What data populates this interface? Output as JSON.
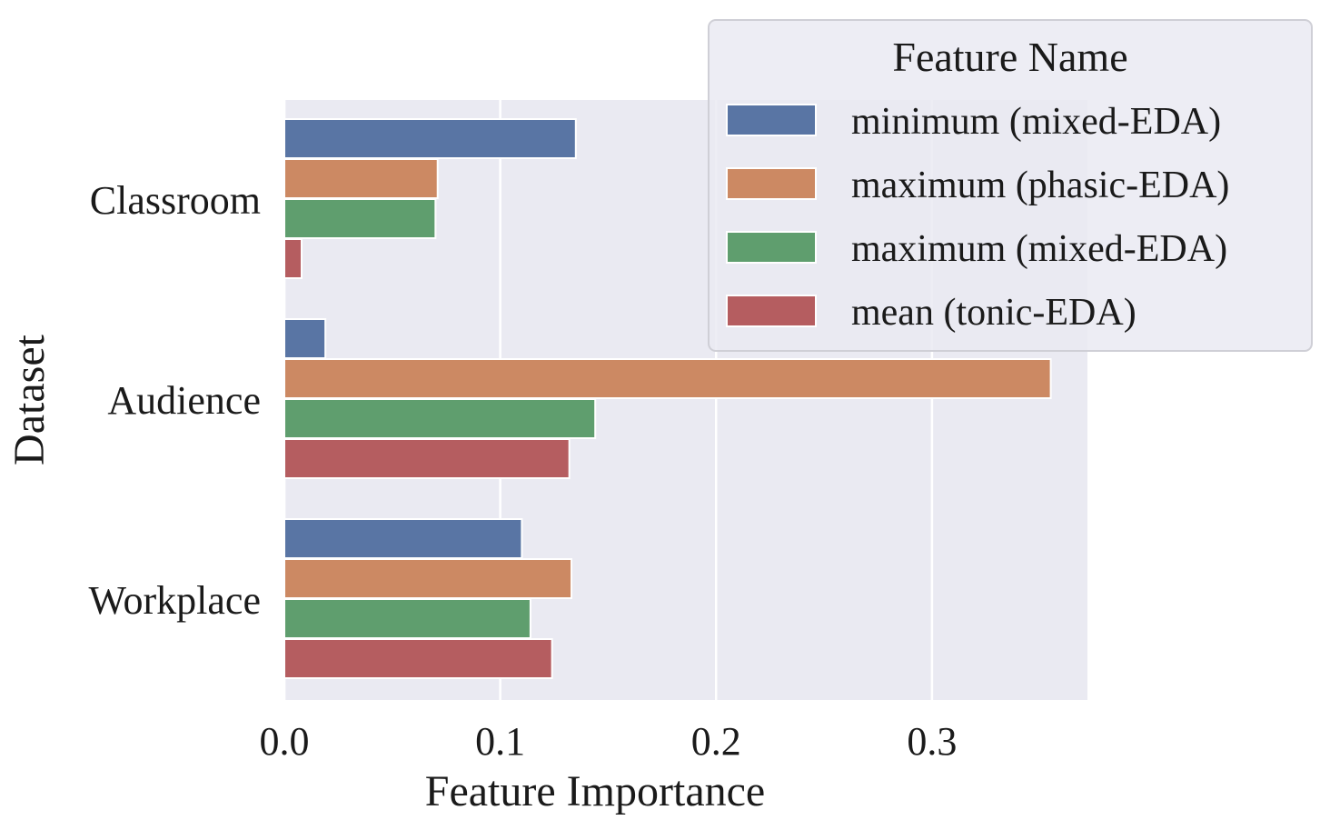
{
  "chart_data": {
    "type": "bar",
    "orientation": "horizontal",
    "xlabel": "Feature Importance",
    "ylabel": "Dataset",
    "xlim": [
      0,
      0.372
    ],
    "xticks": [
      0.0,
      0.1,
      0.2,
      0.3
    ],
    "xtick_labels": [
      "0.0",
      "0.1",
      "0.2",
      "0.3"
    ],
    "categories": [
      "Classroom",
      "Audience",
      "Workplace"
    ],
    "grid": true,
    "legend": {
      "title": "Feature Name",
      "placement": "top-right"
    },
    "series": [
      {
        "name": "minimum (mixed-EDA)",
        "color": "#5975a4",
        "values": [
          0.135,
          0.019,
          0.11
        ]
      },
      {
        "name": "maximum (phasic-EDA)",
        "color": "#cc8963",
        "values": [
          0.071,
          0.355,
          0.133
        ]
      },
      {
        "name": "maximum (mixed-EDA)",
        "color": "#5f9e6e",
        "values": [
          0.07,
          0.144,
          0.114
        ]
      },
      {
        "name": "mean (tonic-EDA)",
        "color": "#b55d60",
        "values": [
          0.008,
          0.132,
          0.124
        ]
      }
    ],
    "colors": {
      "plot_background": "#eaeaf2",
      "grid": "#ffffff",
      "legend_background": "#eaeaf2",
      "legend_border": "#cfcfd6"
    }
  }
}
